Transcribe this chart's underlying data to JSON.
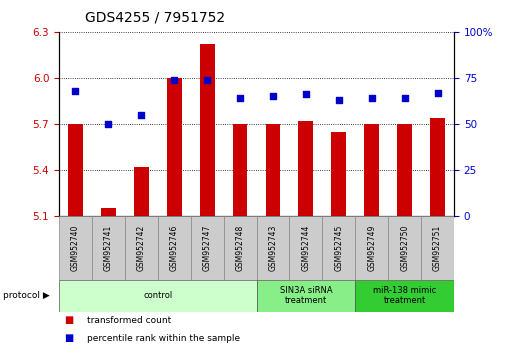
{
  "title": "GDS4255 / 7951752",
  "samples": [
    "GSM952740",
    "GSM952741",
    "GSM952742",
    "GSM952746",
    "GSM952747",
    "GSM952748",
    "GSM952743",
    "GSM952744",
    "GSM952745",
    "GSM952749",
    "GSM952750",
    "GSM952751"
  ],
  "transformed_counts": [
    5.7,
    5.15,
    5.42,
    6.0,
    6.22,
    5.7,
    5.7,
    5.72,
    5.65,
    5.7,
    5.7,
    5.74
  ],
  "percentile_ranks": [
    68,
    50,
    55,
    74,
    74,
    64,
    65,
    66,
    63,
    64,
    64,
    67
  ],
  "ylim_left": [
    5.1,
    6.3
  ],
  "ylim_right": [
    0,
    100
  ],
  "yticks_left": [
    5.1,
    5.4,
    5.7,
    6.0,
    6.3
  ],
  "yticks_right": [
    0,
    25,
    50,
    75,
    100
  ],
  "bar_color": "#cc0000",
  "dot_color": "#0000cc",
  "groups": [
    {
      "label": "control",
      "start": 0,
      "end": 6,
      "color": "#ccffcc"
    },
    {
      "label": "SIN3A siRNA\ntreatment",
      "start": 6,
      "end": 9,
      "color": "#88ee88"
    },
    {
      "label": "miR-138 mimic\ntreatment",
      "start": 9,
      "end": 12,
      "color": "#33cc33"
    }
  ],
  "legend_items": [
    {
      "label": "transformed count",
      "color": "#cc0000"
    },
    {
      "label": "percentile rank within the sample",
      "color": "#0000cc"
    }
  ],
  "grid_color": "black",
  "background_color": "white",
  "title_fontsize": 10,
  "tick_fontsize": 7.5,
  "bar_width": 0.45,
  "dot_size": 15
}
